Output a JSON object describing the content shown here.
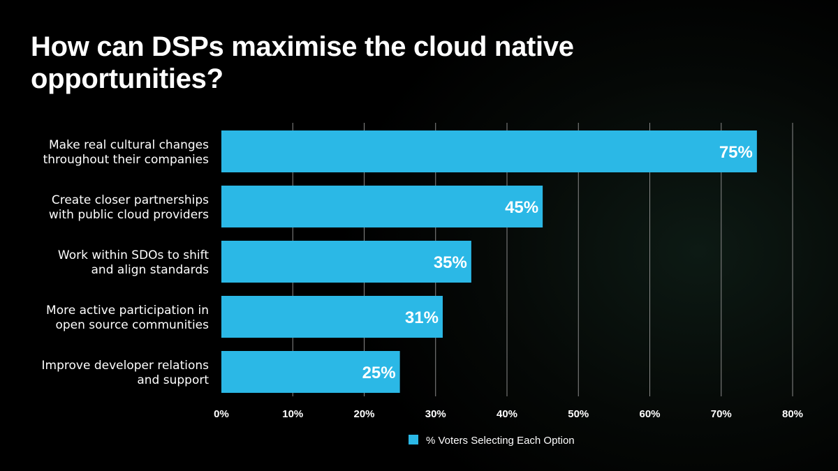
{
  "title": "How can DSPs maximise the cloud native opportunities?",
  "chart_data": {
    "type": "bar",
    "orientation": "horizontal",
    "title": "How can DSPs maximise the cloud native opportunities?",
    "categories": [
      [
        "Make real cultural changes",
        "throughout their companies"
      ],
      [
        "Create closer partnerships",
        "with public cloud providers"
      ],
      [
        "Work within SDOs to shift",
        "and align standards"
      ],
      [
        "More active participation in",
        "open source communities"
      ],
      [
        "Improve developer relations",
        "and support"
      ]
    ],
    "series": [
      {
        "name": "% Voters Selecting Each Option",
        "values": [
          75,
          45,
          35,
          31,
          25
        ],
        "color": "#2bb8e6"
      }
    ],
    "data_labels": [
      "75%",
      "45%",
      "35%",
      "31%",
      "25%"
    ],
    "xlim": [
      0,
      80
    ],
    "xticks": [
      "0%",
      "10%",
      "20%",
      "30%",
      "40%",
      "50%",
      "60%",
      "70%",
      "80%"
    ],
    "grid": true,
    "legend": "bottom"
  }
}
